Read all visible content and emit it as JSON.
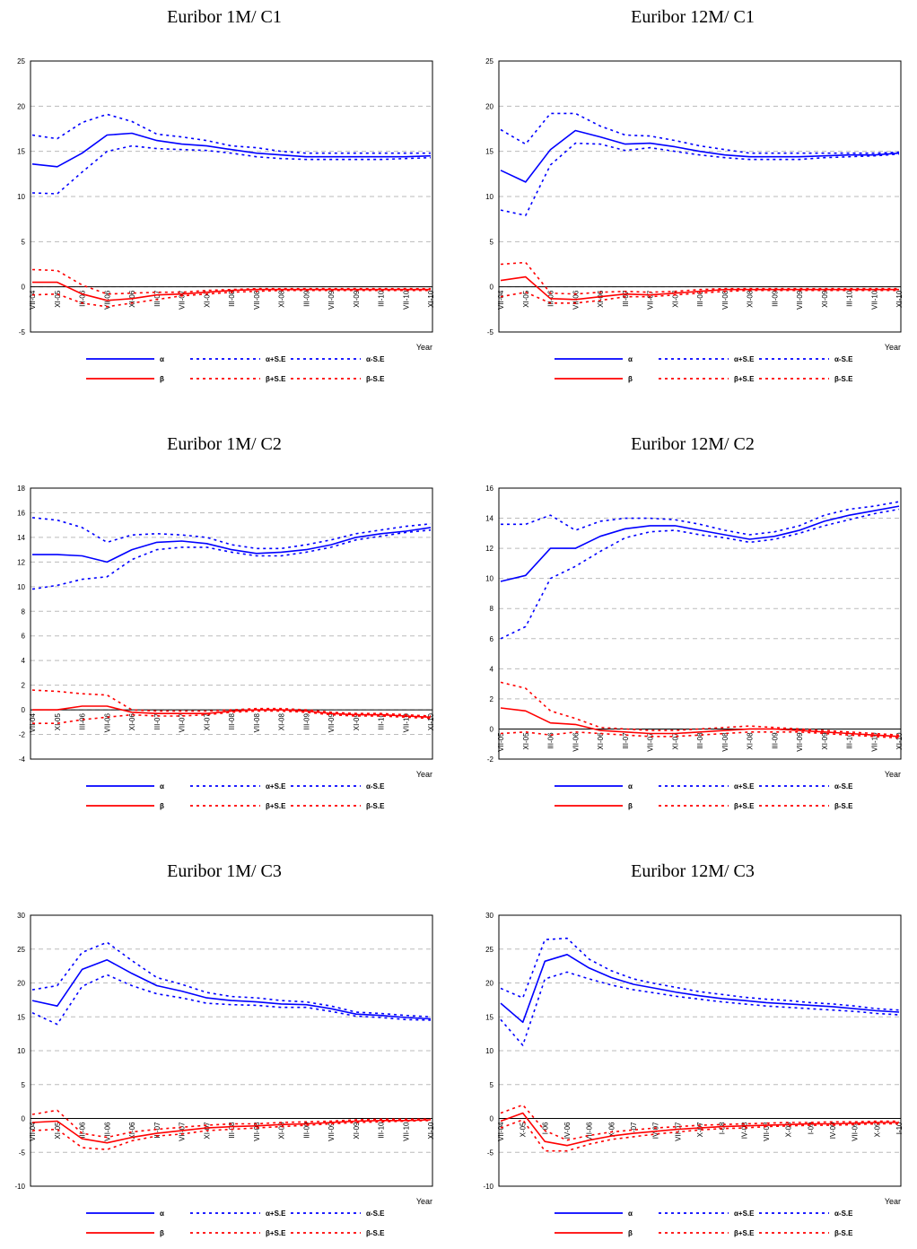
{
  "legend": {
    "alpha": "α",
    "alpha_plus": "α+S.E",
    "alpha_minus": "α-S.E",
    "beta": "β",
    "beta_plus": "β+S.E",
    "beta_minus": "β-S.E"
  },
  "colors": {
    "alpha": "#0000ff",
    "beta": "#ff0000",
    "grid": "#bbbbbb"
  },
  "chart_data": [
    {
      "type": "line",
      "title": "Euribor 1M/ C1",
      "xlabel": "Year",
      "ylim": [
        -5,
        25
      ],
      "yticks": [
        -5,
        0,
        5,
        10,
        15,
        20,
        25
      ],
      "xticks": [
        "VII-04",
        "XI-05",
        "III-06",
        "VII-06",
        "XI-06",
        "III-07",
        "VII-07",
        "XI-07",
        "III-08",
        "VII-08",
        "XI-08",
        "III-09",
        "VII-09",
        "XI-09",
        "III-10",
        "VII-10",
        "XI-10"
      ],
      "n": 17,
      "series": [
        {
          "name": "α",
          "values": [
            13.6,
            13.3,
            14.8,
            16.8,
            17.0,
            16.2,
            15.8,
            15.6,
            15.2,
            14.8,
            14.6,
            14.4,
            14.4,
            14.4,
            14.4,
            14.4,
            14.5
          ]
        },
        {
          "name": "α+S.E",
          "values": [
            16.8,
            16.4,
            18.2,
            19.1,
            18.3,
            16.9,
            16.6,
            16.2,
            15.6,
            15.4,
            15.0,
            14.8,
            14.8,
            14.8,
            14.8,
            14.8,
            14.8
          ]
        },
        {
          "name": "α-S.E",
          "values": [
            10.4,
            10.3,
            12.7,
            15.0,
            15.6,
            15.3,
            15.2,
            15.1,
            14.8,
            14.4,
            14.2,
            14.1,
            14.1,
            14.1,
            14.1,
            14.2,
            14.3
          ]
        },
        {
          "name": "β",
          "values": [
            0.5,
            0.5,
            -0.8,
            -1.5,
            -1.3,
            -0.9,
            -0.8,
            -0.6,
            -0.4,
            -0.3,
            -0.3,
            -0.3,
            -0.3,
            -0.3,
            -0.3,
            -0.3,
            -0.3
          ]
        },
        {
          "name": "β+S.E",
          "values": [
            1.9,
            1.8,
            0.2,
            -0.8,
            -0.7,
            -0.6,
            -0.6,
            -0.4,
            -0.3,
            -0.2,
            -0.2,
            -0.2,
            -0.2,
            -0.2,
            -0.2,
            -0.2,
            -0.2
          ]
        },
        {
          "name": "β-S.E",
          "values": [
            -0.9,
            -0.8,
            -1.8,
            -2.2,
            -1.8,
            -1.4,
            -1.0,
            -0.8,
            -0.6,
            -0.5,
            -0.4,
            -0.4,
            -0.4,
            -0.4,
            -0.4,
            -0.4,
            -0.4
          ]
        }
      ]
    },
    {
      "type": "line",
      "title": "Euribor 12M/ C1",
      "xlabel": "Year",
      "ylim": [
        -5,
        25
      ],
      "yticks": [
        -5,
        0,
        5,
        10,
        15,
        20,
        25
      ],
      "xticks": [
        "VII-04",
        "XI-05",
        "III-06",
        "VII-06",
        "XI-06",
        "III-07",
        "VII-07",
        "XI-07",
        "III-08",
        "VII-08",
        "XI-08",
        "III-09",
        "VII-09",
        "XI-09",
        "III-10",
        "VII-10",
        "XI-10"
      ],
      "n": 17,
      "series": [
        {
          "name": "α",
          "values": [
            12.9,
            11.6,
            15.2,
            17.3,
            16.6,
            15.8,
            15.9,
            15.5,
            15.0,
            14.6,
            14.4,
            14.4,
            14.4,
            14.5,
            14.6,
            14.6,
            14.8
          ]
        },
        {
          "name": "α+S.E",
          "values": [
            17.4,
            15.8,
            19.2,
            19.2,
            17.8,
            16.8,
            16.7,
            16.2,
            15.6,
            15.2,
            14.8,
            14.8,
            14.8,
            14.8,
            14.8,
            14.8,
            14.9
          ]
        },
        {
          "name": "α-S.E",
          "values": [
            8.5,
            7.9,
            13.5,
            15.9,
            15.8,
            15.1,
            15.4,
            15.0,
            14.6,
            14.3,
            14.1,
            14.1,
            14.1,
            14.3,
            14.4,
            14.5,
            14.7
          ]
        },
        {
          "name": "β",
          "values": [
            0.7,
            1.1,
            -1.3,
            -1.4,
            -1.1,
            -0.8,
            -0.9,
            -0.7,
            -0.5,
            -0.3,
            -0.3,
            -0.3,
            -0.3,
            -0.3,
            -0.3,
            -0.3,
            -0.3
          ]
        },
        {
          "name": "β+S.E",
          "values": [
            2.5,
            2.7,
            -0.7,
            -0.8,
            -0.6,
            -0.5,
            -0.6,
            -0.5,
            -0.3,
            -0.2,
            -0.2,
            -0.2,
            -0.2,
            -0.2,
            -0.2,
            -0.2,
            -0.2
          ]
        },
        {
          "name": "β-S.E",
          "values": [
            -1.1,
            -0.6,
            -1.8,
            -1.8,
            -1.5,
            -1.1,
            -1.1,
            -0.9,
            -0.7,
            -0.5,
            -0.4,
            -0.4,
            -0.4,
            -0.4,
            -0.4,
            -0.4,
            -0.4
          ]
        }
      ]
    },
    {
      "type": "line",
      "title": "Euribor 1M/ C2",
      "xlabel": "Year",
      "ylim": [
        -4,
        18
      ],
      "yticks": [
        -4,
        -2,
        0,
        2,
        4,
        6,
        8,
        10,
        12,
        14,
        16,
        18
      ],
      "xticks": [
        "VII-04",
        "XI-05",
        "III-06",
        "VII-06",
        "XI-06",
        "III-07",
        "VII-07",
        "XI-07",
        "III-08",
        "VII-08",
        "XI-08",
        "III-09",
        "VII-09",
        "XI-09",
        "III-10",
        "VII-10",
        "XI-10"
      ],
      "n": 17,
      "series": [
        {
          "name": "α",
          "values": [
            12.6,
            12.6,
            12.5,
            12.0,
            13.0,
            13.6,
            13.7,
            13.5,
            13.0,
            12.7,
            12.8,
            13.0,
            13.4,
            14.0,
            14.3,
            14.5,
            14.8
          ]
        },
        {
          "name": "α+S.E",
          "values": [
            15.6,
            15.4,
            14.8,
            13.6,
            14.2,
            14.3,
            14.2,
            14.0,
            13.4,
            13.1,
            13.1,
            13.4,
            13.8,
            14.3,
            14.6,
            14.9,
            15.1
          ]
        },
        {
          "name": "α-S.E",
          "values": [
            9.8,
            10.1,
            10.6,
            10.8,
            12.2,
            13.0,
            13.2,
            13.2,
            12.8,
            12.5,
            12.5,
            12.8,
            13.2,
            13.8,
            14.1,
            14.4,
            14.6
          ]
        },
        {
          "name": "β",
          "values": [
            0.0,
            0.0,
            0.3,
            0.3,
            -0.2,
            -0.3,
            -0.3,
            -0.3,
            -0.1,
            0.0,
            0.0,
            -0.1,
            -0.3,
            -0.4,
            -0.4,
            -0.5,
            -0.6
          ]
        },
        {
          "name": "β+S.E",
          "values": [
            1.6,
            1.5,
            1.3,
            1.2,
            0.0,
            -0.1,
            -0.1,
            -0.1,
            0.0,
            0.1,
            0.1,
            0.0,
            -0.2,
            -0.3,
            -0.3,
            -0.4,
            -0.5
          ]
        },
        {
          "name": "β-S.E",
          "values": [
            -1.1,
            -1.1,
            -0.8,
            -0.6,
            -0.4,
            -0.5,
            -0.5,
            -0.4,
            -0.2,
            -0.1,
            -0.1,
            -0.2,
            -0.4,
            -0.5,
            -0.5,
            -0.6,
            -0.7
          ]
        }
      ]
    },
    {
      "type": "line",
      "title": "Euribor 12M/ C2",
      "xlabel": "Year",
      "ylim": [
        -2,
        16
      ],
      "yticks": [
        -2,
        0,
        2,
        4,
        6,
        8,
        10,
        12,
        14,
        16
      ],
      "xticks": [
        "VII-05",
        "XI-05",
        "III-06",
        "VII-06",
        "XI-06",
        "III-07",
        "VII-07",
        "XI-07",
        "III-08",
        "VII-08",
        "XI-08",
        "III-09",
        "VII-09",
        "XI-09",
        "III-10",
        "VII-10",
        "XI-10"
      ],
      "n": 17,
      "series": [
        {
          "name": "α",
          "values": [
            9.8,
            10.2,
            12.0,
            12.0,
            12.8,
            13.3,
            13.5,
            13.5,
            13.2,
            12.9,
            12.6,
            12.8,
            13.2,
            13.8,
            14.2,
            14.5,
            14.8
          ]
        },
        {
          "name": "α+S.E",
          "values": [
            13.6,
            13.6,
            14.2,
            13.2,
            13.8,
            14.0,
            14.0,
            13.9,
            13.6,
            13.2,
            12.9,
            13.1,
            13.5,
            14.2,
            14.6,
            14.8,
            15.1
          ]
        },
        {
          "name": "α-S.E",
          "values": [
            6.0,
            6.8,
            10.0,
            10.8,
            11.8,
            12.7,
            13.1,
            13.2,
            12.9,
            12.7,
            12.4,
            12.6,
            13.0,
            13.5,
            13.9,
            14.3,
            14.6
          ]
        },
        {
          "name": "β",
          "values": [
            1.4,
            1.2,
            0.4,
            0.3,
            -0.1,
            -0.2,
            -0.3,
            -0.3,
            -0.2,
            -0.1,
            0.0,
            0.0,
            -0.1,
            -0.2,
            -0.3,
            -0.4,
            -0.5
          ]
        },
        {
          "name": "β+S.E",
          "values": [
            3.1,
            2.7,
            1.2,
            0.7,
            0.1,
            0.0,
            -0.1,
            -0.1,
            0.0,
            0.1,
            0.2,
            0.1,
            0.0,
            -0.1,
            -0.2,
            -0.3,
            -0.4
          ]
        },
        {
          "name": "β-S.E",
          "values": [
            -0.3,
            -0.2,
            -0.4,
            -0.2,
            -0.3,
            -0.4,
            -0.5,
            -0.5,
            -0.4,
            -0.3,
            -0.2,
            -0.2,
            -0.2,
            -0.3,
            -0.4,
            -0.5,
            -0.6
          ]
        }
      ]
    },
    {
      "type": "line",
      "title": "Euribor 1M/ C3",
      "xlabel": "Year",
      "ylim": [
        -10,
        30
      ],
      "yticks": [
        -10,
        -5,
        0,
        5,
        10,
        15,
        20,
        25,
        30
      ],
      "xticks": [
        "VII-04",
        "XI-05",
        "III-06",
        "VII-06",
        "XI-06",
        "III-07",
        "VII-07",
        "XI-07",
        "III-08",
        "VII-08",
        "XI-08",
        "III-09",
        "VII-09",
        "XI-09",
        "III-10",
        "VII-10",
        "XI-10"
      ],
      "n": 17,
      "series": [
        {
          "name": "α",
          "values": [
            17.4,
            16.6,
            22.0,
            23.4,
            21.4,
            19.6,
            18.8,
            17.8,
            17.4,
            17.2,
            16.9,
            16.8,
            16.2,
            15.4,
            15.2,
            14.9,
            14.7
          ]
        },
        {
          "name": "α+S.E",
          "values": [
            19.0,
            19.6,
            24.5,
            26.0,
            23.3,
            20.8,
            19.8,
            18.6,
            18.0,
            17.8,
            17.4,
            17.2,
            16.6,
            15.7,
            15.5,
            15.2,
            15.0
          ]
        },
        {
          "name": "α-S.E",
          "values": [
            15.6,
            13.9,
            19.5,
            21.2,
            19.6,
            18.4,
            17.8,
            17.0,
            16.8,
            16.7,
            16.4,
            16.4,
            15.8,
            15.1,
            14.9,
            14.6,
            14.5
          ]
        },
        {
          "name": "β",
          "values": [
            -0.6,
            -0.4,
            -3.0,
            -3.6,
            -2.8,
            -2.2,
            -1.8,
            -1.4,
            -1.2,
            -1.1,
            -0.9,
            -0.8,
            -0.6,
            -0.4,
            -0.3,
            -0.3,
            -0.2
          ]
        },
        {
          "name": "β+S.E",
          "values": [
            0.6,
            1.2,
            -2.2,
            -2.8,
            -2.0,
            -1.6,
            -1.3,
            -1.0,
            -0.8,
            -0.8,
            -0.6,
            -0.5,
            -0.4,
            -0.2,
            -0.1,
            -0.1,
            -0.1
          ]
        },
        {
          "name": "β-S.E",
          "values": [
            -1.8,
            -1.6,
            -4.3,
            -4.6,
            -3.3,
            -2.6,
            -2.3,
            -1.8,
            -1.6,
            -1.4,
            -1.2,
            -1.0,
            -0.8,
            -0.6,
            -0.5,
            -0.4,
            -0.3
          ]
        }
      ]
    },
    {
      "type": "line",
      "title": "Euribor 12M/ C3",
      "xlabel": "Year",
      "ylim": [
        -10,
        30
      ],
      "yticks": [
        -10,
        -5,
        0,
        5,
        10,
        15,
        20,
        25,
        30
      ],
      "xticks": [
        "VII-04",
        "X-05",
        "I-06",
        "IV-06",
        "VII-06",
        "X-06",
        "I-07",
        "IV-07",
        "VII-07",
        "X-07",
        "I-08",
        "IV-08",
        "VII-08",
        "X-08",
        "I-09",
        "IV-09",
        "VII-09",
        "X-09",
        "I-10"
      ],
      "n": 19,
      "series": [
        {
          "name": "α",
          "values": [
            17.0,
            14.2,
            23.2,
            24.2,
            22.2,
            20.8,
            19.8,
            19.2,
            18.6,
            18.1,
            17.7,
            17.4,
            17.1,
            16.9,
            16.7,
            16.5,
            16.2,
            15.9,
            15.7
          ]
        },
        {
          "name": "α+S.E",
          "values": [
            19.2,
            17.8,
            26.4,
            26.6,
            23.5,
            21.8,
            20.6,
            19.9,
            19.3,
            18.7,
            18.3,
            17.9,
            17.6,
            17.4,
            17.1,
            16.9,
            16.6,
            16.2,
            16.0
          ]
        },
        {
          "name": "α-S.E",
          "values": [
            14.6,
            10.8,
            20.6,
            21.6,
            20.6,
            19.7,
            19.0,
            18.5,
            18.0,
            17.6,
            17.2,
            16.9,
            16.6,
            16.4,
            16.2,
            16.0,
            15.8,
            15.5,
            15.3
          ]
        },
        {
          "name": "β",
          "values": [
            -0.4,
            0.8,
            -3.4,
            -4.0,
            -3.2,
            -2.6,
            -2.2,
            -1.9,
            -1.6,
            -1.4,
            -1.2,
            -1.1,
            -1.0,
            -0.9,
            -0.8,
            -0.8,
            -0.7,
            -0.6,
            -0.6
          ]
        },
        {
          "name": "β+S.E",
          "values": [
            0.8,
            2.0,
            -1.8,
            -3.2,
            -2.5,
            -2.0,
            -1.7,
            -1.4,
            -1.2,
            -1.0,
            -0.9,
            -0.8,
            -0.7,
            -0.6,
            -0.6,
            -0.5,
            -0.5,
            -0.4,
            -0.4
          ]
        },
        {
          "name": "β-S.E",
          "values": [
            -1.4,
            -0.2,
            -4.8,
            -4.8,
            -3.8,
            -3.1,
            -2.7,
            -2.3,
            -2.0,
            -1.7,
            -1.5,
            -1.4,
            -1.2,
            -1.1,
            -1.0,
            -1.0,
            -0.9,
            -0.8,
            -0.8
          ]
        }
      ]
    }
  ]
}
